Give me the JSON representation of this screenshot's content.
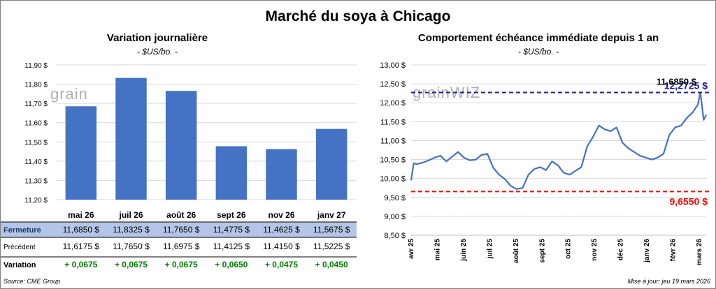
{
  "title": "Marché du soya à Chicago",
  "source": "Source: CME Group",
  "updated": "Mise à jour: jeu 19 mars 2026",
  "watermark": "grain",
  "watermark_right": "grainWIZ",
  "colors": {
    "bar": "#4472c4",
    "line": "#4472c4",
    "max": "#2020a0",
    "min": "#ff0000",
    "positive": "#008000",
    "fermeture_bg": "#b4c6e7",
    "fermeture_text": "#1f3864"
  },
  "chart_data": [
    {
      "type": "bar",
      "title": "Variation journalière",
      "unit": "- $US/bo. -",
      "ylim": [
        11.2,
        11.9
      ],
      "yticks": [
        "11,20 $",
        "11,30 $",
        "11,40 $",
        "11,50 $",
        "11,60 $",
        "11,70 $",
        "11,80 $",
        "11,90 $"
      ],
      "categories": [
        "mai 26",
        "juil 26",
        "août 26",
        "sept 26",
        "nov 26",
        "janv 27"
      ],
      "values": [
        11.685,
        11.8325,
        11.765,
        11.4775,
        11.4625,
        11.5675
      ],
      "grid": true,
      "table": {
        "rows": [
          {
            "label": "Fermeture",
            "cells": [
              "11,6850  $",
              "11,8325  $",
              "11,7650  $",
              "11,4775  $",
              "11,4625  $",
              "11,5675  $"
            ]
          },
          {
            "label": "Précédent",
            "cells": [
              "11,6175  $",
              "11,7650  $",
              "11,6975  $",
              "11,4125  $",
              "11,4150  $",
              "11,5225  $"
            ]
          },
          {
            "label": "Variation",
            "cells": [
              "+ 0,0675",
              "+ 0,0675",
              "+ 0,0675",
              "+ 0,0650",
              "+ 0,0475",
              "+ 0,0450"
            ]
          }
        ]
      }
    },
    {
      "type": "line",
      "title": "Comportement  échéance immédiate depuis 1 an",
      "unit": "- $US/bo. -",
      "ylim": [
        8.5,
        13.0
      ],
      "yticks": [
        "8,50 $",
        "9,00 $",
        "9,50 $",
        "10,00 $",
        "10,50 $",
        "11,00 $",
        "11,50 $",
        "12,00 $",
        "12,50 $",
        "13,00 $"
      ],
      "xticks": [
        "avr 25",
        "mai 25",
        "juin 25",
        "juil 25",
        "août 25",
        "sept 25",
        "oct 25",
        "nov 25",
        "déc 25",
        "janv 26",
        "févr 26",
        "mars 26"
      ],
      "xrange": [
        "2025-04-01",
        "2026-03-19"
      ],
      "max_line": {
        "value": 12.2725,
        "label": "12,2725 $"
      },
      "min_line": {
        "value": 9.655,
        "label": "9,6550 $"
      },
      "last_label": "11,6850 $",
      "series": [
        {
          "x": [
            "2025-04-01",
            "2025-04-04",
            "2025-04-08",
            "2025-04-15",
            "2025-04-22",
            "2025-04-29",
            "2025-05-06",
            "2025-05-13",
            "2025-05-20",
            "2025-05-27",
            "2025-06-03",
            "2025-06-10",
            "2025-06-17",
            "2025-06-24",
            "2025-07-01",
            "2025-07-08",
            "2025-07-15",
            "2025-07-22",
            "2025-07-29",
            "2025-08-05",
            "2025-08-12",
            "2025-08-19",
            "2025-08-26",
            "2025-09-02",
            "2025-09-09",
            "2025-09-16",
            "2025-09-23",
            "2025-09-30",
            "2025-10-07",
            "2025-10-14",
            "2025-10-21",
            "2025-10-28",
            "2025-11-04",
            "2025-11-11",
            "2025-11-18",
            "2025-11-25",
            "2025-12-02",
            "2025-12-09",
            "2025-12-16",
            "2025-12-23",
            "2025-12-30",
            "2026-01-06",
            "2026-01-13",
            "2026-01-20",
            "2026-01-27",
            "2026-02-03",
            "2026-02-10",
            "2026-02-17",
            "2026-02-24",
            "2026-03-03",
            "2026-03-09",
            "2026-03-12",
            "2026-03-16",
            "2026-03-19"
          ],
          "y": [
            9.95,
            10.4,
            10.38,
            10.42,
            10.48,
            10.55,
            10.6,
            10.45,
            10.58,
            10.7,
            10.55,
            10.48,
            10.5,
            10.62,
            10.65,
            10.28,
            10.1,
            9.98,
            9.8,
            9.72,
            9.75,
            10.1,
            10.25,
            10.3,
            10.22,
            10.45,
            10.35,
            10.15,
            10.1,
            10.2,
            10.3,
            10.85,
            11.1,
            11.4,
            11.3,
            11.25,
            11.35,
            10.95,
            10.8,
            10.7,
            10.6,
            10.55,
            10.5,
            10.55,
            10.65,
            11.15,
            11.35,
            11.4,
            11.6,
            11.75,
            11.95,
            12.27,
            11.55,
            11.685
          ]
        }
      ]
    }
  ]
}
